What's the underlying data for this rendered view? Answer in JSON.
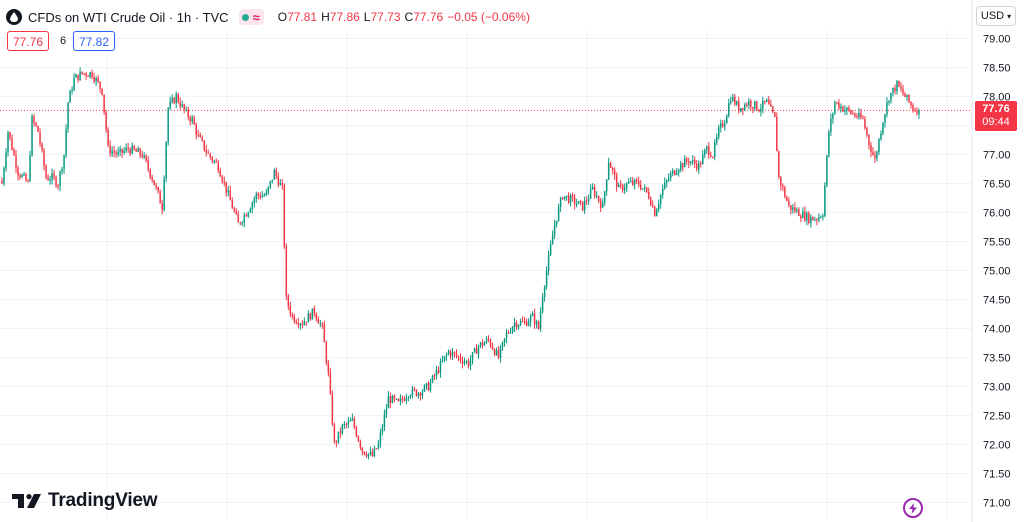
{
  "header": {
    "title": "CFDs on WTI Crude Oil · 1h · TVC",
    "ohlc": {
      "o_label": "O",
      "o": "77.81",
      "h_label": "H",
      "h": "77.86",
      "l_label": "L",
      "l": "77.73",
      "c_label": "C",
      "c": "77.76",
      "change": "−0.05 (−0.06%)"
    }
  },
  "trade": {
    "bid": "77.76",
    "spread": "6",
    "ask": "77.82"
  },
  "currency": "USD",
  "last_price": {
    "price": "77.76",
    "countdown": "09:44"
  },
  "brand": "TradingView",
  "colors": {
    "up": "#089981",
    "down": "#f23645",
    "grid": "#f0f3fa",
    "accent": "#2962ff"
  },
  "icons": {
    "symbol": "drop-icon",
    "status": "market-status-icon",
    "brand": "tradingview-logo-icon",
    "bolt": "lightning-icon",
    "currency": "chevron-down-icon"
  },
  "chart_data": {
    "type": "candlestick",
    "ylim": [
      70.9,
      79.3
    ],
    "yticks": [
      "79.00",
      "78.50",
      "78.00",
      "77.50",
      "77.00",
      "76.50",
      "76.00",
      "75.50",
      "75.00",
      "74.50",
      "74.00",
      "73.50",
      "73.00",
      "72.50",
      "72.00",
      "71.50",
      "71.00"
    ],
    "y_axis_position": "right",
    "grid": true,
    "last_price": 77.76,
    "anchors": [
      [
        0,
        76.5
      ],
      [
        3,
        77.4
      ],
      [
        8,
        76.7
      ],
      [
        13,
        76.5
      ],
      [
        15,
        77.6
      ],
      [
        18,
        77.4
      ],
      [
        20,
        77.0
      ],
      [
        22,
        76.6
      ],
      [
        25,
        76.6
      ],
      [
        28,
        76.5
      ],
      [
        31,
        77.0
      ],
      [
        33,
        77.9
      ],
      [
        36,
        78.3
      ],
      [
        40,
        78.4
      ],
      [
        45,
        78.4
      ],
      [
        50,
        78.1
      ],
      [
        53,
        77.1
      ],
      [
        58,
        77.0
      ],
      [
        63,
        77.1
      ],
      [
        70,
        77.0
      ],
      [
        75,
        76.6
      ],
      [
        80,
        76.1
      ],
      [
        83,
        77.8
      ],
      [
        87,
        78.0
      ],
      [
        92,
        77.7
      ],
      [
        95,
        77.6
      ],
      [
        98,
        77.3
      ],
      [
        103,
        77.0
      ],
      [
        108,
        76.8
      ],
      [
        113,
        76.3
      ],
      [
        118,
        75.8
      ],
      [
        122,
        76.0
      ],
      [
        127,
        76.3
      ],
      [
        132,
        76.3
      ],
      [
        136,
        76.7
      ],
      [
        140,
        76.4
      ],
      [
        142,
        74.5
      ],
      [
        145,
        74.2
      ],
      [
        150,
        74.1
      ],
      [
        156,
        74.3
      ],
      [
        160,
        74.0
      ],
      [
        163,
        73.2
      ],
      [
        166,
        72.0
      ],
      [
        170,
        72.3
      ],
      [
        175,
        72.4
      ],
      [
        180,
        71.9
      ],
      [
        185,
        71.8
      ],
      [
        188,
        72.0
      ],
      [
        193,
        72.8
      ],
      [
        198,
        72.7
      ],
      [
        203,
        72.9
      ],
      [
        208,
        72.9
      ],
      [
        213,
        73.0
      ],
      [
        218,
        73.3
      ],
      [
        223,
        73.6
      ],
      [
        228,
        73.5
      ],
      [
        233,
        73.4
      ],
      [
        238,
        73.7
      ],
      [
        243,
        73.8
      ],
      [
        248,
        73.5
      ],
      [
        252,
        73.9
      ],
      [
        256,
        74.1
      ],
      [
        261,
        74.1
      ],
      [
        265,
        74.2
      ],
      [
        268,
        74.0
      ],
      [
        270,
        74.6
      ],
      [
        273,
        75.2
      ],
      [
        276,
        75.8
      ],
      [
        280,
        76.3
      ],
      [
        285,
        76.2
      ],
      [
        290,
        76.1
      ],
      [
        295,
        76.4
      ],
      [
        300,
        76.1
      ],
      [
        303,
        76.9
      ],
      [
        308,
        76.4
      ],
      [
        313,
        76.5
      ],
      [
        318,
        76.5
      ],
      [
        323,
        76.3
      ],
      [
        326,
        76.0
      ],
      [
        330,
        76.4
      ],
      [
        333,
        76.6
      ],
      [
        338,
        76.8
      ],
      [
        343,
        76.9
      ],
      [
        348,
        76.8
      ],
      [
        352,
        77.1
      ],
      [
        355,
        77.0
      ],
      [
        358,
        77.4
      ],
      [
        361,
        77.6
      ],
      [
        364,
        78.0
      ],
      [
        368,
        77.8
      ],
      [
        373,
        77.9
      ],
      [
        378,
        77.8
      ],
      [
        382,
        77.9
      ],
      [
        386,
        77.6
      ],
      [
        388,
        76.6
      ],
      [
        391,
        76.3
      ],
      [
        393,
        76.1
      ],
      [
        398,
        76.0
      ],
      [
        403,
        75.9
      ],
      [
        407,
        75.9
      ],
      [
        410,
        76.0
      ],
      [
        413,
        77.4
      ],
      [
        416,
        77.9
      ],
      [
        420,
        77.8
      ],
      [
        425,
        77.7
      ],
      [
        430,
        77.6
      ],
      [
        433,
        77.2
      ],
      [
        436,
        76.9
      ],
      [
        440,
        77.6
      ],
      [
        443,
        78.0
      ],
      [
        447,
        78.2
      ],
      [
        451,
        78.0
      ],
      [
        455,
        77.8
      ],
      [
        458,
        77.76
      ]
    ],
    "n_candles": 459
  }
}
